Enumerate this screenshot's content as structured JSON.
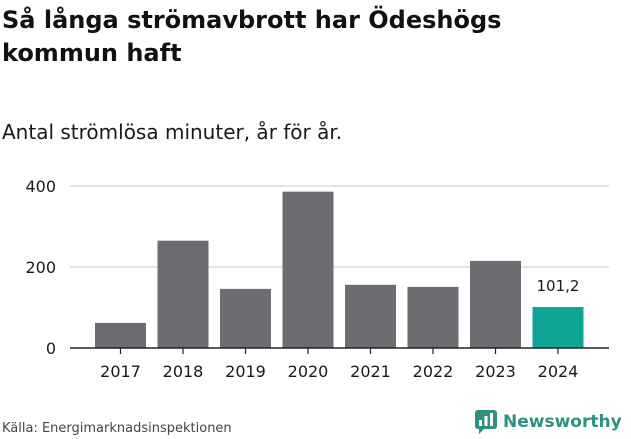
{
  "header": {
    "title": "Så långa strömavbrott har Ödeshögs kommun haft",
    "subtitle": "Antal strömlösa minuter, år för år."
  },
  "footer": {
    "source": "Källa: Energimarknadsinspektionen",
    "logo_text": "Newsworthy"
  },
  "colors": {
    "bar": "#6d6c70",
    "highlight": "#0fa596",
    "grid": "#d9d9d9",
    "axis": "#222222",
    "logo": "#2f8f83"
  },
  "chart_data": {
    "type": "bar",
    "title": "Så långa strömavbrott har Ödeshögs kommun haft",
    "subtitle": "Antal strömlösa minuter, år för år.",
    "xlabel": "",
    "ylabel": "",
    "categories": [
      "2017",
      "2018",
      "2019",
      "2020",
      "2021",
      "2022",
      "2023",
      "2024"
    ],
    "values": [
      62,
      265,
      146,
      386,
      156,
      151,
      215,
      101.2
    ],
    "highlight_index": 7,
    "data_labels": [
      {
        "index": 7,
        "text": "101,2"
      }
    ],
    "ylim": [
      0,
      400
    ],
    "yticks": [
      0,
      200,
      400
    ],
    "ytick_labels": [
      "0",
      "200",
      "400"
    ],
    "grid": true
  }
}
